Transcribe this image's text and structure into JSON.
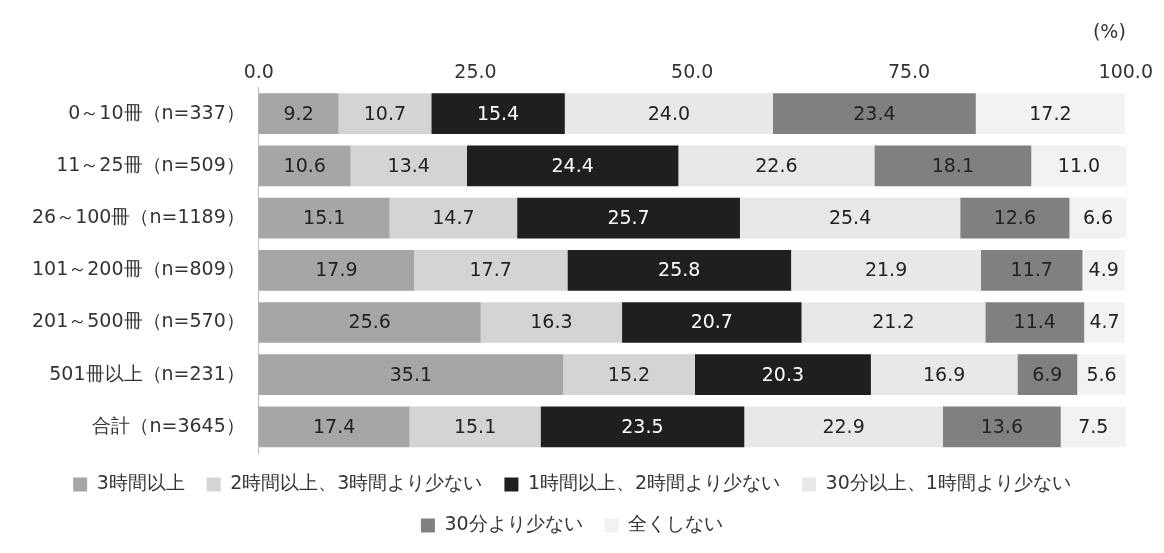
{
  "chart_data": {
    "type": "bar",
    "orientation": "horizontal",
    "stacked": true,
    "xlabel": "(%)",
    "categories": [
      "0～10冊（n=337）",
      "11～25冊（n=509）",
      "26～100冊（n=1189）",
      "101～200冊（n=809）",
      "201～500冊（n=570）",
      "501冊以上（n=231）",
      "合計（n=3645）"
    ],
    "series": [
      {
        "name": "3時間以上",
        "color": "#a6a6a6",
        "values": [
          9.2,
          10.6,
          15.1,
          17.9,
          25.6,
          35.1,
          17.4
        ],
        "value_labels": [
          "9.2",
          "10.6",
          "15.1",
          "17.9",
          "25.6",
          "35.1",
          "17.4"
        ]
      },
      {
        "name": "2時間以上、3時間より少ない",
        "color": "#d4d4d4",
        "values": [
          10.7,
          13.4,
          14.7,
          17.7,
          16.3,
          15.2,
          15.1
        ],
        "value_labels": [
          "10.7",
          "13.4",
          "14.7",
          "17.7",
          "16.3",
          "15.2",
          "15.1"
        ]
      },
      {
        "name": "1時間以上、2時間より少ない",
        "color": "#1f1f1f",
        "values": [
          15.4,
          24.4,
          25.7,
          25.8,
          20.7,
          20.3,
          23.5
        ],
        "value_labels": [
          "15.4",
          "24.4",
          "25.7",
          "25.8",
          "20.7",
          "20.3",
          "23.5"
        ]
      },
      {
        "name": "30分以上、1時間より少ない",
        "color": "#e8e8e8",
        "values": [
          24.0,
          22.6,
          25.4,
          21.9,
          21.2,
          16.9,
          22.9
        ],
        "value_labels": [
          "24.0",
          "22.6",
          "25.4",
          "21.9",
          "21.2",
          "16.9",
          "22.9"
        ]
      },
      {
        "name": "30分より少ない",
        "color": "#808080",
        "values": [
          23.4,
          18.1,
          12.6,
          11.7,
          11.4,
          6.9,
          13.6
        ],
        "value_labels": [
          "23.4",
          "18.1",
          "12.6",
          "11.7",
          "11.4",
          "6.9",
          "13.6"
        ]
      },
      {
        "name": "全くしない",
        "color": "#f2f2f2",
        "values": [
          17.2,
          11.0,
          6.6,
          4.9,
          4.7,
          5.6,
          7.5
        ],
        "value_labels": [
          "17.2",
          "11.0",
          "6.6",
          "4.9",
          "4.7",
          "5.6",
          "7.5"
        ]
      }
    ],
    "xlim": [
      0,
      100
    ],
    "xticks": [
      {
        "value": 0,
        "label": "0.0"
      },
      {
        "value": 25,
        "label": "25.0"
      },
      {
        "value": 50,
        "label": "50.0"
      },
      {
        "value": 75,
        "label": "75.0"
      },
      {
        "value": 100,
        "label": "100.0"
      }
    ],
    "grid": false,
    "legend": "bottom"
  }
}
